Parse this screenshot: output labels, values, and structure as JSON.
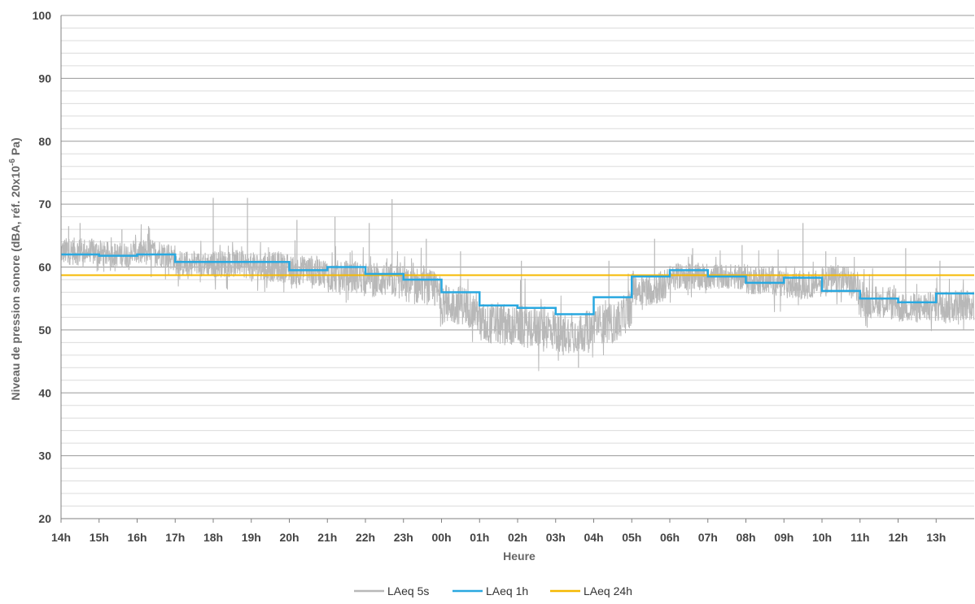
{
  "chart_data": {
    "type": "line",
    "title": "",
    "xlabel": "Heure",
    "ylabel": "Niveau de pression sonore (dBA, réf. 20x10",
    "ylabel_sup": "-6",
    "ylabel_end": " Pa)",
    "ylim": [
      20,
      100
    ],
    "xlim": [
      0,
      24
    ],
    "y_ticks": [
      20,
      30,
      40,
      50,
      60,
      70,
      80,
      90,
      100
    ],
    "y_minor_step": 2,
    "grid": true,
    "legend_position": "bottom-center",
    "x_tick_labels": [
      "14h",
      "15h",
      "16h",
      "17h",
      "18h",
      "19h",
      "20h",
      "21h",
      "22h",
      "23h",
      "00h",
      "01h",
      "02h",
      "03h",
      "04h",
      "05h",
      "06h",
      "07h",
      "08h",
      "09h",
      "10h",
      "11h",
      "12h",
      "13h"
    ],
    "series": [
      {
        "name": "LAeq 5s",
        "color": "#b8b8b8",
        "kind": "noise",
        "hourly_center": [
          62.5,
          62.0,
          62.3,
          60.5,
          60.5,
          60.0,
          59.5,
          58.5,
          58.0,
          57.0,
          54.0,
          51.0,
          50.5,
          49.5,
          51.0,
          56.5,
          58.5,
          58.5,
          58.0,
          57.0,
          58.0,
          54.5,
          53.5,
          54.0
        ],
        "hourly_spread": [
          2.2,
          2.0,
          2.2,
          2.0,
          2.2,
          2.4,
          2.4,
          2.6,
          2.8,
          3.0,
          3.2,
          3.4,
          3.4,
          3.2,
          3.2,
          2.6,
          2.2,
          2.0,
          2.4,
          2.2,
          2.4,
          2.6,
          2.4,
          2.6
        ],
        "peaks": [
          [
            0.2,
            66.5
          ],
          [
            0.5,
            67.0
          ],
          [
            1.6,
            66.0
          ],
          [
            2.3,
            66.5
          ],
          [
            4.0,
            71.0
          ],
          [
            4.9,
            71.0
          ],
          [
            6.2,
            67.5
          ],
          [
            7.2,
            68.0
          ],
          [
            8.1,
            67.0
          ],
          [
            8.7,
            70.8
          ],
          [
            9.6,
            64.5
          ],
          [
            10.5,
            62.5
          ],
          [
            12.1,
            61.0
          ],
          [
            13.2,
            46.0
          ],
          [
            13.6,
            44.0
          ],
          [
            14.4,
            61.0
          ],
          [
            15.6,
            64.5
          ],
          [
            16.6,
            63.0
          ],
          [
            17.9,
            63.5
          ],
          [
            19.5,
            67.0
          ],
          [
            20.1,
            62.5
          ],
          [
            22.2,
            63.0
          ],
          [
            23.1,
            61.0
          ]
        ]
      },
      {
        "name": "LAeq 1h",
        "color": "#29a8e0",
        "kind": "step",
        "values": [
          62.0,
          61.8,
          62.0,
          60.8,
          60.8,
          60.8,
          59.5,
          60.0,
          58.9,
          58.0,
          56.0,
          53.9,
          53.5,
          52.5,
          55.2,
          58.5,
          59.5,
          58.5,
          57.5,
          58.3,
          56.2,
          55.0,
          54.4,
          55.8
        ]
      },
      {
        "name": "LAeq 24h",
        "color": "#f5b800",
        "kind": "flat",
        "value": 58.7
      }
    ]
  }
}
